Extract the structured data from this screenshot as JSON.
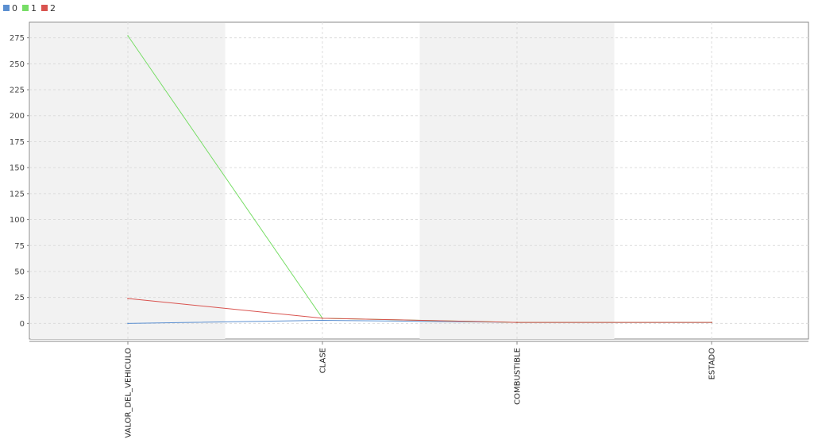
{
  "chart_data": {
    "type": "line",
    "categories": [
      "VALOR_DEL_VEHICULO",
      "CLASE",
      "COMBUSTIBLE",
      "ESTADO"
    ],
    "series": [
      {
        "name": "0",
        "color": "#5b8fd0",
        "values": [
          0,
          3,
          1,
          1
        ]
      },
      {
        "name": "1",
        "color": "#77dd66",
        "values": [
          277,
          5,
          1,
          1
        ]
      },
      {
        "name": "2",
        "color": "#d9534f",
        "values": [
          24,
          5,
          1,
          1
        ]
      }
    ],
    "yticks": [
      0,
      25,
      50,
      75,
      100,
      125,
      150,
      175,
      200,
      225,
      250,
      275
    ],
    "ylim": [
      -15,
      290
    ],
    "grid": true,
    "alternating_bands": true,
    "legend_position": "top-left",
    "title": "",
    "xlabel": "",
    "ylabel": ""
  }
}
